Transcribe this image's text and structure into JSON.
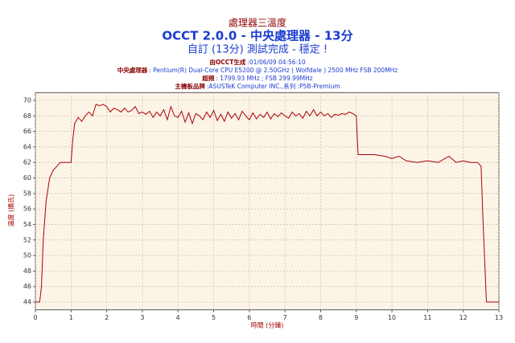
{
  "chart_data": {
    "type": "line",
    "title": "處理器三溫度",
    "subtitle": "OCCT 2.0.0 - 中央處理器 - 13分",
    "status": "自訂 (13分) 測試完成 - 穩定 !",
    "info": [
      {
        "label": "由OCCT生成",
        "value": ":01/06/09 04:56:10"
      },
      {
        "label": "中央處理器",
        "value": ": Pentium(R) Dual-Core CPU E5200 @ 2.50GHz ( Wolfdale ) 2500 MHz FSB 200MHz"
      },
      {
        "label": "超頻",
        "value": ": 1799.93 MHz ; FSB 299.99MHz"
      },
      {
        "label": "主機板品牌",
        "value": ":ASUSTeK Computer INC.,系列 :P5B-Premium"
      }
    ],
    "x_label": "時間 (分鐘)",
    "y_label": "溫度 (攝氏)",
    "color": "#a80000",
    "grid": true,
    "xlim": [
      0,
      13
    ],
    "ylim": [
      43,
      71
    ],
    "xticks": [
      0,
      1,
      2,
      3,
      4,
      5,
      6,
      7,
      8,
      9,
      10,
      11,
      12,
      13
    ],
    "yticks": [
      44,
      46,
      48,
      50,
      52,
      54,
      56,
      58,
      60,
      62,
      64,
      66,
      68,
      70
    ],
    "x": [
      0,
      0.12,
      0.17,
      0.22,
      0.3,
      0.4,
      0.5,
      0.6,
      0.7,
      0.8,
      1.0,
      1.05,
      1.1,
      1.2,
      1.3,
      1.4,
      1.5,
      1.6,
      1.7,
      1.8,
      1.9,
      2.0,
      2.1,
      2.2,
      2.3,
      2.4,
      2.5,
      2.6,
      2.7,
      2.8,
      2.9,
      3.0,
      3.1,
      3.2,
      3.3,
      3.4,
      3.5,
      3.6,
      3.7,
      3.8,
      3.9,
      4.0,
      4.1,
      4.2,
      4.3,
      4.4,
      4.5,
      4.6,
      4.7,
      4.8,
      4.9,
      5.0,
      5.1,
      5.2,
      5.3,
      5.4,
      5.5,
      5.6,
      5.7,
      5.8,
      5.9,
      6.0,
      6.1,
      6.2,
      6.3,
      6.4,
      6.5,
      6.6,
      6.7,
      6.8,
      6.9,
      7.0,
      7.1,
      7.2,
      7.3,
      7.4,
      7.5,
      7.6,
      7.7,
      7.8,
      7.9,
      8.0,
      8.1,
      8.2,
      8.3,
      8.4,
      8.5,
      8.6,
      8.7,
      8.8,
      8.9,
      9.0,
      9.05,
      9.2,
      9.5,
      9.8,
      10.0,
      10.2,
      10.4,
      10.7,
      11.0,
      11.3,
      11.6,
      11.8,
      12.0,
      12.2,
      12.4,
      12.5,
      12.55,
      12.65,
      13.0
    ],
    "values": [
      44,
      44,
      46,
      52,
      57,
      60,
      61,
      61.5,
      62,
      62,
      62,
      65,
      67,
      67.8,
      67.3,
      68,
      68.5,
      68,
      69.5,
      69.3,
      69.5,
      69.2,
      68.5,
      69,
      68.8,
      68.5,
      69,
      68.5,
      68.7,
      69.2,
      68.3,
      68.5,
      68.2,
      68.6,
      67.8,
      68.5,
      68,
      68.8,
      67.5,
      69.2,
      68,
      67.8,
      68.6,
      67.2,
      68.4,
      67,
      68.3,
      68,
      67.5,
      68.5,
      67.8,
      68.7,
      67.4,
      68.2,
      67.3,
      68.5,
      67.7,
      68.3,
      67.5,
      68.6,
      68,
      67.5,
      68.4,
      67.6,
      68.2,
      67.8,
      68.5,
      67.6,
      68.3,
      67.9,
      68.4,
      68,
      67.7,
      68.5,
      68,
      68.3,
      67.7,
      68.6,
      68,
      68.8,
      68,
      68.5,
      68,
      68.3,
      67.8,
      68.2,
      68.1,
      68.3,
      68.2,
      68.5,
      68.3,
      68,
      63,
      63,
      63,
      62.8,
      62.5,
      62.8,
      62.2,
      62,
      62.2,
      62,
      62.8,
      62,
      62.2,
      62,
      62,
      61.5,
      55,
      44,
      44
    ]
  }
}
